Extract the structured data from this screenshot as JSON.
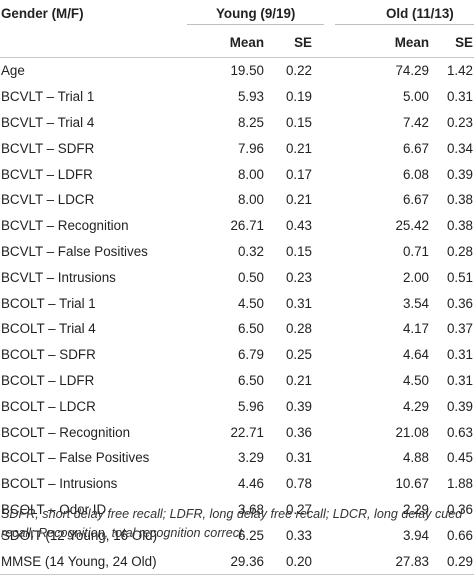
{
  "header": {
    "gender_label": "Gender (M/F)",
    "young_label": "Young (9/19)",
    "old_label": "Old (11/13)",
    "mean_label": "Mean",
    "se_label": "SE"
  },
  "rows": [
    {
      "label": "Age",
      "young_mean": "19.50",
      "young_se": "0.22",
      "old_mean": "74.29",
      "old_se": "1.42"
    },
    {
      "label": "BCVLT – Trial 1",
      "young_mean": "5.93",
      "young_se": "0.19",
      "old_mean": "5.00",
      "old_se": "0.31"
    },
    {
      "label": "BCVLT – Trial 4",
      "young_mean": "8.25",
      "young_se": "0.15",
      "old_mean": "7.42",
      "old_se": "0.23"
    },
    {
      "label": "BCVLT – SDFR",
      "young_mean": "7.96",
      "young_se": "0.21",
      "old_mean": "6.67",
      "old_se": "0.34"
    },
    {
      "label": "BCVLT – LDFR",
      "young_mean": "8.00",
      "young_se": "0.17",
      "old_mean": "6.08",
      "old_se": "0.39"
    },
    {
      "label": "BCVLT – LDCR",
      "young_mean": "8.00",
      "young_se": "0.21",
      "old_mean": "6.67",
      "old_se": "0.38"
    },
    {
      "label": "BCVLT – Recognition",
      "young_mean": "26.71",
      "young_se": "0.43",
      "old_mean": "25.42",
      "old_se": "0.38"
    },
    {
      "label": "BCVLT – False Positives",
      "young_mean": "0.32",
      "young_se": "0.15",
      "old_mean": "0.71",
      "old_se": "0.28"
    },
    {
      "label": "BCVLT – Intrusions",
      "young_mean": "0.50",
      "young_se": "0.23",
      "old_mean": "2.00",
      "old_se": "0.51"
    },
    {
      "label": "BCOLT – Trial 1",
      "young_mean": "4.50",
      "young_se": "0.31",
      "old_mean": "3.54",
      "old_se": "0.36"
    },
    {
      "label": "BCOLT – Trial 4",
      "young_mean": "6.50",
      "young_se": "0.28",
      "old_mean": "4.17",
      "old_se": "0.37"
    },
    {
      "label": "BCOLT – SDFR",
      "young_mean": "6.79",
      "young_se": "0.25",
      "old_mean": "4.64",
      "old_se": "0.31"
    },
    {
      "label": "BCOLT – LDFR",
      "young_mean": "6.50",
      "young_se": "0.21",
      "old_mean": "4.50",
      "old_se": "0.31"
    },
    {
      "label": "BCOLT – LDCR",
      "young_mean": "5.96",
      "young_se": "0.39",
      "old_mean": "4.29",
      "old_se": "0.39"
    },
    {
      "label": "BCOLT – Recognition",
      "young_mean": "22.71",
      "young_se": "0.36",
      "old_mean": "21.08",
      "old_se": "0.63"
    },
    {
      "label": "BCOLT – False Positives",
      "young_mean": "3.29",
      "young_se": "0.31",
      "old_mean": "4.88",
      "old_se": "0.45"
    },
    {
      "label": "BCOLT – Intrusions",
      "young_mean": "4.46",
      "young_se": "0.78",
      "old_mean": "10.67",
      "old_se": "1.88"
    },
    {
      "label": "BCOLT – Odor ID",
      "young_mean": "3.68",
      "young_se": "0.27",
      "old_mean": "2.29",
      "old_se": "0.36"
    },
    {
      "label": "SDOIT (12 Young, 16 Old)",
      "young_mean": "6.25",
      "young_se": "0.33",
      "old_mean": "3.94",
      "old_se": "0.66"
    },
    {
      "label": "MMSE (14 Young, 24 Old)",
      "young_mean": "29.36",
      "young_se": "0.20",
      "old_mean": "27.83",
      "old_se": "0.29"
    }
  ],
  "footnote": "SDFR, short delay free recall; LDFR, long delay free recall; LDCR, long delay cued recall; Recognition, total recognition correct."
}
